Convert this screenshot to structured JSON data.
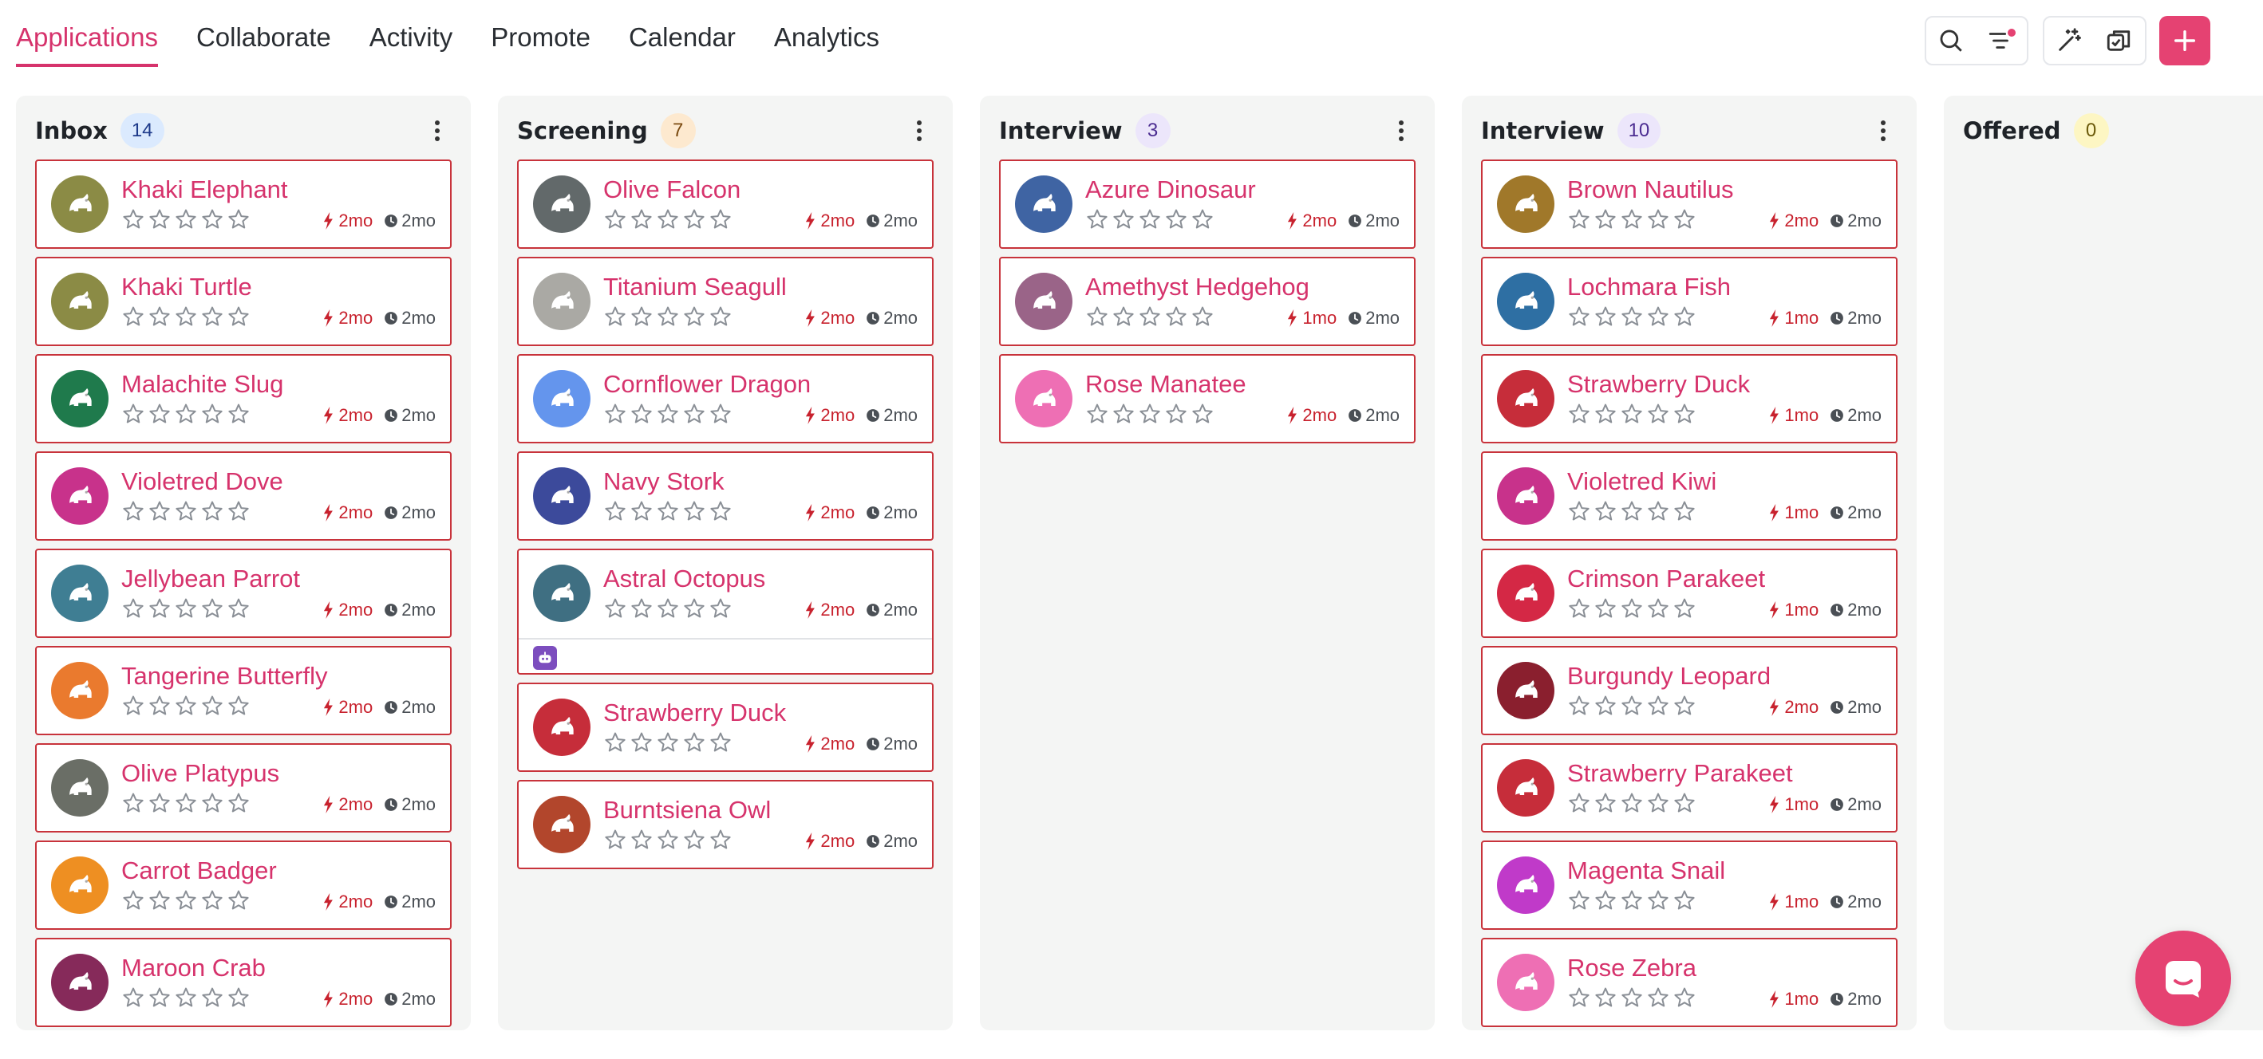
{
  "nav": {
    "tabs": [
      {
        "label": "Applications",
        "active": true
      },
      {
        "label": "Collaborate",
        "active": false
      },
      {
        "label": "Activity",
        "active": false
      },
      {
        "label": "Promote",
        "active": false
      },
      {
        "label": "Calendar",
        "active": false
      },
      {
        "label": "Analytics",
        "active": false
      }
    ]
  },
  "toolbar": {
    "icons": [
      "search-icon",
      "filter-icon",
      "magic-wand-icon",
      "bulk-select-icon",
      "plus-icon"
    ],
    "filter_dot_color": "#e54272"
  },
  "colors": {
    "accent": "#d6336c",
    "card_border": "#c8333b",
    "last_activity": "#c8222e",
    "add_button": "#e54272"
  },
  "columns": [
    {
      "title": "Inbox",
      "count": "14",
      "count_bg": "#dbeafe",
      "count_color": "#1e3a8a",
      "cards": [
        {
          "name": "Khaki Elephant",
          "avatar_color": "#8b8b45",
          "icon": "elephant-icon",
          "last": "2mo",
          "age": "2mo",
          "rating": 0
        },
        {
          "name": "Khaki Turtle",
          "avatar_color": "#8b8b45",
          "icon": "turtle-icon",
          "last": "2mo",
          "age": "2mo",
          "rating": 0
        },
        {
          "name": "Malachite Slug",
          "avatar_color": "#1f7a4c",
          "icon": "slug-icon",
          "last": "2mo",
          "age": "2mo",
          "rating": 0
        },
        {
          "name": "Violetred Dove",
          "avatar_color": "#c8328b",
          "icon": "dove-icon",
          "last": "2mo",
          "age": "2mo",
          "rating": 0
        },
        {
          "name": "Jellybean Parrot",
          "avatar_color": "#3f7e93",
          "icon": "parrot-icon",
          "last": "2mo",
          "age": "2mo",
          "rating": 0
        },
        {
          "name": "Tangerine Butterfly",
          "avatar_color": "#ea7a2e",
          "icon": "butterfly-icon",
          "last": "2mo",
          "age": "2mo",
          "rating": 0
        },
        {
          "name": "Olive Platypus",
          "avatar_color": "#6a6e66",
          "icon": "platypus-icon",
          "last": "2mo",
          "age": "2mo",
          "rating": 0
        },
        {
          "name": "Carrot Badger",
          "avatar_color": "#ee8f22",
          "icon": "badger-icon",
          "last": "2mo",
          "age": "2mo",
          "rating": 0
        },
        {
          "name": "Maroon Crab",
          "avatar_color": "#862a5a",
          "icon": "crab-icon",
          "last": "2mo",
          "age": "2mo",
          "rating": 0
        }
      ]
    },
    {
      "title": "Screening",
      "count": "7",
      "count_bg": "#fde9cf",
      "count_color": "#7a4a10",
      "cards": [
        {
          "name": "Olive Falcon",
          "avatar_color": "#62696a",
          "icon": "falcon-icon",
          "last": "2mo",
          "age": "2mo",
          "rating": 0
        },
        {
          "name": "Titanium Seagull",
          "avatar_color": "#aaa9a4",
          "icon": "seagull-icon",
          "last": "2mo",
          "age": "2mo",
          "rating": 0
        },
        {
          "name": "Cornflower Dragon",
          "avatar_color": "#6495ed",
          "icon": "dragon-icon",
          "last": "2mo",
          "age": "2mo",
          "rating": 0
        },
        {
          "name": "Navy Stork",
          "avatar_color": "#3c4a9b",
          "icon": "stork-icon",
          "last": "2mo",
          "age": "2mo",
          "rating": 0
        },
        {
          "name": "Astral Octopus",
          "avatar_color": "#3f6f82",
          "icon": "octopus-icon",
          "last": "2mo",
          "age": "2mo",
          "rating": 0,
          "footer_bot": true
        },
        {
          "name": "Strawberry Duck",
          "avatar_color": "#c62d3a",
          "icon": "duck-icon",
          "last": "2mo",
          "age": "2mo",
          "rating": 0
        },
        {
          "name": "Burntsiena Owl",
          "avatar_color": "#b2462c",
          "icon": "owl-icon",
          "last": "2mo",
          "age": "2mo",
          "rating": 0
        }
      ]
    },
    {
      "title": "Interview",
      "count": "3",
      "count_bg": "#ece6fb",
      "count_color": "#4b2c91",
      "cards": [
        {
          "name": "Azure Dinosaur",
          "avatar_color": "#3f64a3",
          "icon": "dinosaur-icon",
          "last": "2mo",
          "age": "2mo",
          "rating": 0
        },
        {
          "name": "Amethyst Hedgehog",
          "avatar_color": "#9a6488",
          "icon": "hedgehog-icon",
          "last": "1mo",
          "age": "2mo",
          "rating": 0
        },
        {
          "name": "Rose Manatee",
          "avatar_color": "#ee6fb4",
          "icon": "manatee-icon",
          "last": "2mo",
          "age": "2mo",
          "rating": 0
        }
      ]
    },
    {
      "title": "Interview",
      "count": "10",
      "count_bg": "#ece6fb",
      "count_color": "#4b2c91",
      "cards": [
        {
          "name": "Brown Nautilus",
          "avatar_color": "#a0782a",
          "icon": "nautilus-icon",
          "last": "2mo",
          "age": "2mo",
          "rating": 0
        },
        {
          "name": "Lochmara Fish",
          "avatar_color": "#2e6fa3",
          "icon": "fish-icon",
          "last": "1mo",
          "age": "2mo",
          "rating": 0
        },
        {
          "name": "Strawberry Duck",
          "avatar_color": "#c62d3a",
          "icon": "duck-icon",
          "last": "1mo",
          "age": "2mo",
          "rating": 0
        },
        {
          "name": "Violetred Kiwi",
          "avatar_color": "#c8328b",
          "icon": "kiwi-icon",
          "last": "1mo",
          "age": "2mo",
          "rating": 0
        },
        {
          "name": "Crimson Parakeet",
          "avatar_color": "#d42845",
          "icon": "parakeet-icon",
          "last": "1mo",
          "age": "2mo",
          "rating": 0
        },
        {
          "name": "Burgundy Leopard",
          "avatar_color": "#8a1f2e",
          "icon": "leopard-icon",
          "last": "2mo",
          "age": "2mo",
          "rating": 0
        },
        {
          "name": "Strawberry Parakeet",
          "avatar_color": "#c62d3a",
          "icon": "parakeet-icon",
          "last": "1mo",
          "age": "2mo",
          "rating": 0
        },
        {
          "name": "Magenta Snail",
          "avatar_color": "#c03ac9",
          "icon": "snail-icon",
          "last": "1mo",
          "age": "2mo",
          "rating": 0
        },
        {
          "name": "Rose Zebra",
          "avatar_color": "#ee6fb4",
          "icon": "zebra-icon",
          "last": "1mo",
          "age": "2mo",
          "rating": 0
        }
      ]
    },
    {
      "title": "Offered",
      "count": "0",
      "count_bg": "#fdf6c3",
      "count_color": "#6b5a0a",
      "cards": []
    }
  ]
}
